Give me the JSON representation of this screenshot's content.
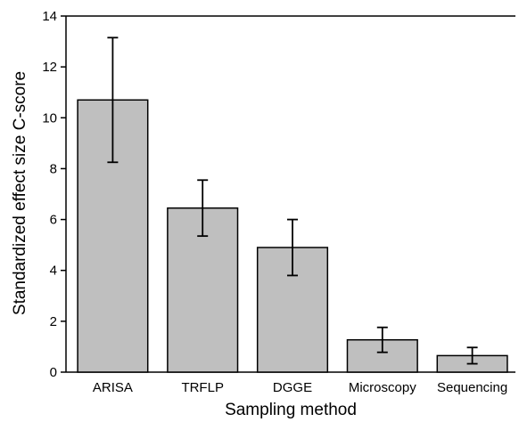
{
  "chart_data": {
    "type": "bar",
    "title": "",
    "xlabel": "Sampling method",
    "ylabel": "Standardized effect size C-score",
    "categories": [
      "ARISA",
      "TRFLP",
      "DGGE",
      "Microscopy",
      "Sequencing"
    ],
    "values": [
      10.7,
      6.45,
      4.9,
      1.27,
      0.65
    ],
    "error_low": [
      8.25,
      5.35,
      3.8,
      0.78,
      0.33
    ],
    "error_high": [
      13.15,
      7.55,
      6.0,
      1.76,
      0.97
    ],
    "ylim": [
      0,
      14
    ],
    "yticks": [
      0,
      2,
      4,
      6,
      8,
      10,
      12,
      14
    ],
    "bar_color": "#bfbfbf",
    "grid": false,
    "legend": "none"
  }
}
